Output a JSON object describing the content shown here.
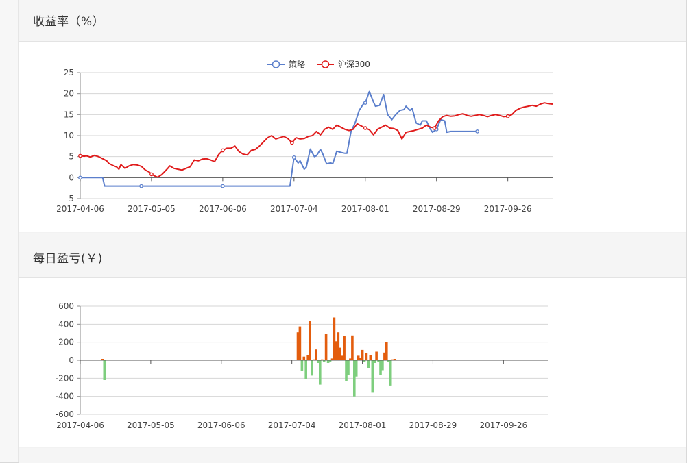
{
  "panels": [
    {
      "title": "收益率（%）"
    },
    {
      "title": "每日盈亏(￥)"
    }
  ],
  "chart_data": [
    {
      "type": "line",
      "ylim": [
        -5,
        25
      ],
      "yticks": [
        "-5",
        "0",
        "5",
        "10",
        "15",
        "20",
        "25"
      ],
      "x_tick_labels": [
        "2017-04-06",
        "2017-05-05",
        "2017-06-06",
        "2017-07-04",
        "2017-08-01",
        "2017-08-29",
        "2017-09-26"
      ],
      "grid": true,
      "legend_position": "top-center",
      "series": [
        {
          "name": "策略",
          "color": "#5b7fcc",
          "points": [
            [
              0,
              0
            ],
            [
              10,
              0
            ],
            [
              11,
              0
            ],
            [
              12,
              -2
            ],
            [
              20,
              -2
            ],
            [
              30,
              -2
            ],
            [
              40,
              -2
            ],
            [
              50,
              -2
            ],
            [
              60,
              -2
            ],
            [
              70,
              -2
            ],
            [
              80,
              -2
            ],
            [
              90,
              -2
            ],
            [
              100,
              -2
            ],
            [
              103,
              -2
            ],
            [
              105,
              4.8
            ],
            [
              107,
              3.5
            ],
            [
              108,
              4
            ],
            [
              110,
              2
            ],
            [
              111,
              2.5
            ],
            [
              113,
              6.8
            ],
            [
              115,
              5
            ],
            [
              116,
              5.2
            ],
            [
              118,
              6.7
            ],
            [
              119,
              5.8
            ],
            [
              121,
              3.3
            ],
            [
              123,
              3.5
            ],
            [
              124,
              3.3
            ],
            [
              126,
              6.3
            ],
            [
              128,
              6
            ],
            [
              130,
              5.8
            ],
            [
              131,
              5.8
            ],
            [
              133,
              11
            ],
            [
              135,
              13
            ],
            [
              137,
              16
            ],
            [
              139,
              17.5
            ],
            [
              140,
              17.8
            ],
            [
              142,
              20.5
            ],
            [
              144,
              18
            ],
            [
              145,
              17
            ],
            [
              147,
              17.2
            ],
            [
              149,
              19.8
            ],
            [
              151,
              15
            ],
            [
              153,
              13.8
            ],
            [
              155,
              15
            ],
            [
              157,
              16
            ],
            [
              159,
              16.2
            ],
            [
              160,
              17
            ],
            [
              162,
              16
            ],
            [
              163,
              16.5
            ],
            [
              165,
              13
            ],
            [
              167,
              12.5
            ],
            [
              168,
              13.5
            ],
            [
              170,
              13.5
            ],
            [
              172,
              11.5
            ],
            [
              173,
              10.8
            ],
            [
              175,
              11.5
            ],
            [
              177,
              13.8
            ],
            [
              179,
              13.5
            ],
            [
              180,
              10.8
            ],
            [
              182,
              11
            ],
            [
              184,
              11
            ],
            [
              190,
              11
            ],
            [
              195,
              11
            ]
          ]
        },
        {
          "name": "沪深300",
          "color": "#e01b1b",
          "points": [
            [
              0,
              5.2
            ],
            [
              2,
              5.1
            ],
            [
              3,
              5.2
            ],
            [
              5,
              4.9
            ],
            [
              7,
              5.3
            ],
            [
              9,
              5.0
            ],
            [
              11,
              4.5
            ],
            [
              13,
              4.0
            ],
            [
              14,
              3.4
            ],
            [
              16,
              2.9
            ],
            [
              18,
              2.5
            ],
            [
              19,
              2.0
            ],
            [
              20,
              3.1
            ],
            [
              22,
              2.2
            ],
            [
              24,
              2.8
            ],
            [
              26,
              3.1
            ],
            [
              28,
              3.0
            ],
            [
              30,
              2.7
            ],
            [
              32,
              1.8
            ],
            [
              34,
              1.3
            ],
            [
              35,
              0.8
            ],
            [
              37,
              0.3
            ],
            [
              38,
              0.1
            ],
            [
              40,
              0.7
            ],
            [
              41,
              1.2
            ],
            [
              43,
              2.2
            ],
            [
              44,
              2.8
            ],
            [
              46,
              2.2
            ],
            [
              48,
              2.0
            ],
            [
              50,
              1.8
            ],
            [
              52,
              2.2
            ],
            [
              54,
              2.6
            ],
            [
              56,
              4.2
            ],
            [
              58,
              4.0
            ],
            [
              60,
              4.4
            ],
            [
              62,
              4.5
            ],
            [
              64,
              4.2
            ],
            [
              66,
              3.8
            ],
            [
              68,
              5.5
            ],
            [
              70,
              6.5
            ],
            [
              72,
              7.0
            ],
            [
              74,
              7.0
            ],
            [
              76,
              7.5
            ],
            [
              78,
              6.2
            ],
            [
              80,
              5.6
            ],
            [
              82,
              5.4
            ],
            [
              84,
              6.5
            ],
            [
              86,
              6.7
            ],
            [
              88,
              7.5
            ],
            [
              90,
              8.5
            ],
            [
              92,
              9.5
            ],
            [
              94,
              10.0
            ],
            [
              96,
              9.2
            ],
            [
              98,
              9.5
            ],
            [
              100,
              9.8
            ],
            [
              102,
              9.3
            ],
            [
              104,
              8.3
            ],
            [
              106,
              9.5
            ],
            [
              108,
              9.2
            ],
            [
              110,
              9.3
            ],
            [
              112,
              9.8
            ],
            [
              114,
              10.0
            ],
            [
              116,
              11.0
            ],
            [
              118,
              10.2
            ],
            [
              120,
              11.5
            ],
            [
              122,
              12.0
            ],
            [
              124,
              11.5
            ],
            [
              126,
              12.5
            ],
            [
              128,
              12.0
            ],
            [
              130,
              11.5
            ],
            [
              132,
              11.2
            ],
            [
              134,
              11.5
            ],
            [
              136,
              12.8
            ],
            [
              138,
              12.3
            ],
            [
              140,
              11.8
            ],
            [
              142,
              11.4
            ],
            [
              144,
              10.2
            ],
            [
              146,
              11.5
            ],
            [
              148,
              12.0
            ],
            [
              150,
              12.5
            ],
            [
              152,
              11.8
            ],
            [
              154,
              11.7
            ],
            [
              156,
              11.2
            ],
            [
              158,
              9.2
            ],
            [
              160,
              10.8
            ],
            [
              162,
              11.0
            ],
            [
              164,
              11.2
            ],
            [
              166,
              11.5
            ],
            [
              168,
              11.8
            ],
            [
              170,
              12.5
            ],
            [
              172,
              12.0
            ],
            [
              174,
              11.8
            ],
            [
              176,
              13.5
            ],
            [
              178,
              14.5
            ],
            [
              180,
              14.8
            ],
            [
              182,
              14.6
            ],
            [
              184,
              14.7
            ],
            [
              186,
              15.0
            ],
            [
              188,
              15.2
            ],
            [
              190,
              14.8
            ],
            [
              192,
              14.6
            ],
            [
              194,
              14.8
            ],
            [
              196,
              15.0
            ],
            [
              198,
              14.8
            ],
            [
              200,
              14.5
            ],
            [
              202,
              14.8
            ],
            [
              204,
              15.0
            ],
            [
              206,
              14.8
            ],
            [
              208,
              14.5
            ],
            [
              210,
              14.6
            ],
            [
              212,
              15.0
            ],
            [
              214,
              16.0
            ],
            [
              216,
              16.5
            ],
            [
              218,
              16.8
            ],
            [
              220,
              17.0
            ],
            [
              222,
              17.2
            ],
            [
              224,
              17.0
            ],
            [
              226,
              17.5
            ],
            [
              228,
              17.8
            ],
            [
              230,
              17.6
            ],
            [
              232,
              17.5
            ]
          ]
        }
      ]
    },
    {
      "type": "bar",
      "ylim": [
        -600,
        600
      ],
      "yticks": [
        "-600",
        "-400",
        "-200",
        "0",
        "200",
        "400",
        "600"
      ],
      "x_tick_labels": [
        "2017-04-06",
        "2017-05-05",
        "2017-06-06",
        "2017-07-04",
        "2017-08-01",
        "2017-08-29",
        "2017-09-26"
      ],
      "grid": true,
      "positive_color": "#e35d0e",
      "negative_color": "#7ece7e",
      "bars": [
        [
          11,
          15
        ],
        [
          12,
          -220
        ],
        [
          108,
          310
        ],
        [
          109,
          375
        ],
        [
          110,
          -120
        ],
        [
          111,
          40
        ],
        [
          112,
          -210
        ],
        [
          113,
          55
        ],
        [
          114,
          440
        ],
        [
          115,
          -170
        ],
        [
          116,
          10
        ],
        [
          117,
          120
        ],
        [
          118,
          -30
        ],
        [
          119,
          -270
        ],
        [
          120,
          10
        ],
        [
          121,
          -20
        ],
        [
          122,
          295
        ],
        [
          123,
          -30
        ],
        [
          124,
          -15
        ],
        [
          125,
          20
        ],
        [
          126,
          475
        ],
        [
          127,
          210
        ],
        [
          128,
          310
        ],
        [
          129,
          140
        ],
        [
          130,
          50
        ],
        [
          131,
          270
        ],
        [
          132,
          -230
        ],
        [
          133,
          -160
        ],
        [
          134,
          20
        ],
        [
          135,
          275
        ],
        [
          136,
          -400
        ],
        [
          137,
          -180
        ],
        [
          138,
          50
        ],
        [
          139,
          30
        ],
        [
          140,
          115
        ],
        [
          141,
          -20
        ],
        [
          142,
          80
        ],
        [
          143,
          -90
        ],
        [
          144,
          60
        ],
        [
          145,
          -360
        ],
        [
          146,
          -30
        ],
        [
          147,
          95
        ],
        [
          148,
          -20
        ],
        [
          149,
          -160
        ],
        [
          150,
          -110
        ],
        [
          151,
          85
        ],
        [
          152,
          205
        ],
        [
          153,
          -15
        ],
        [
          154,
          -280
        ],
        [
          155,
          10
        ],
        [
          156,
          15
        ]
      ]
    }
  ]
}
